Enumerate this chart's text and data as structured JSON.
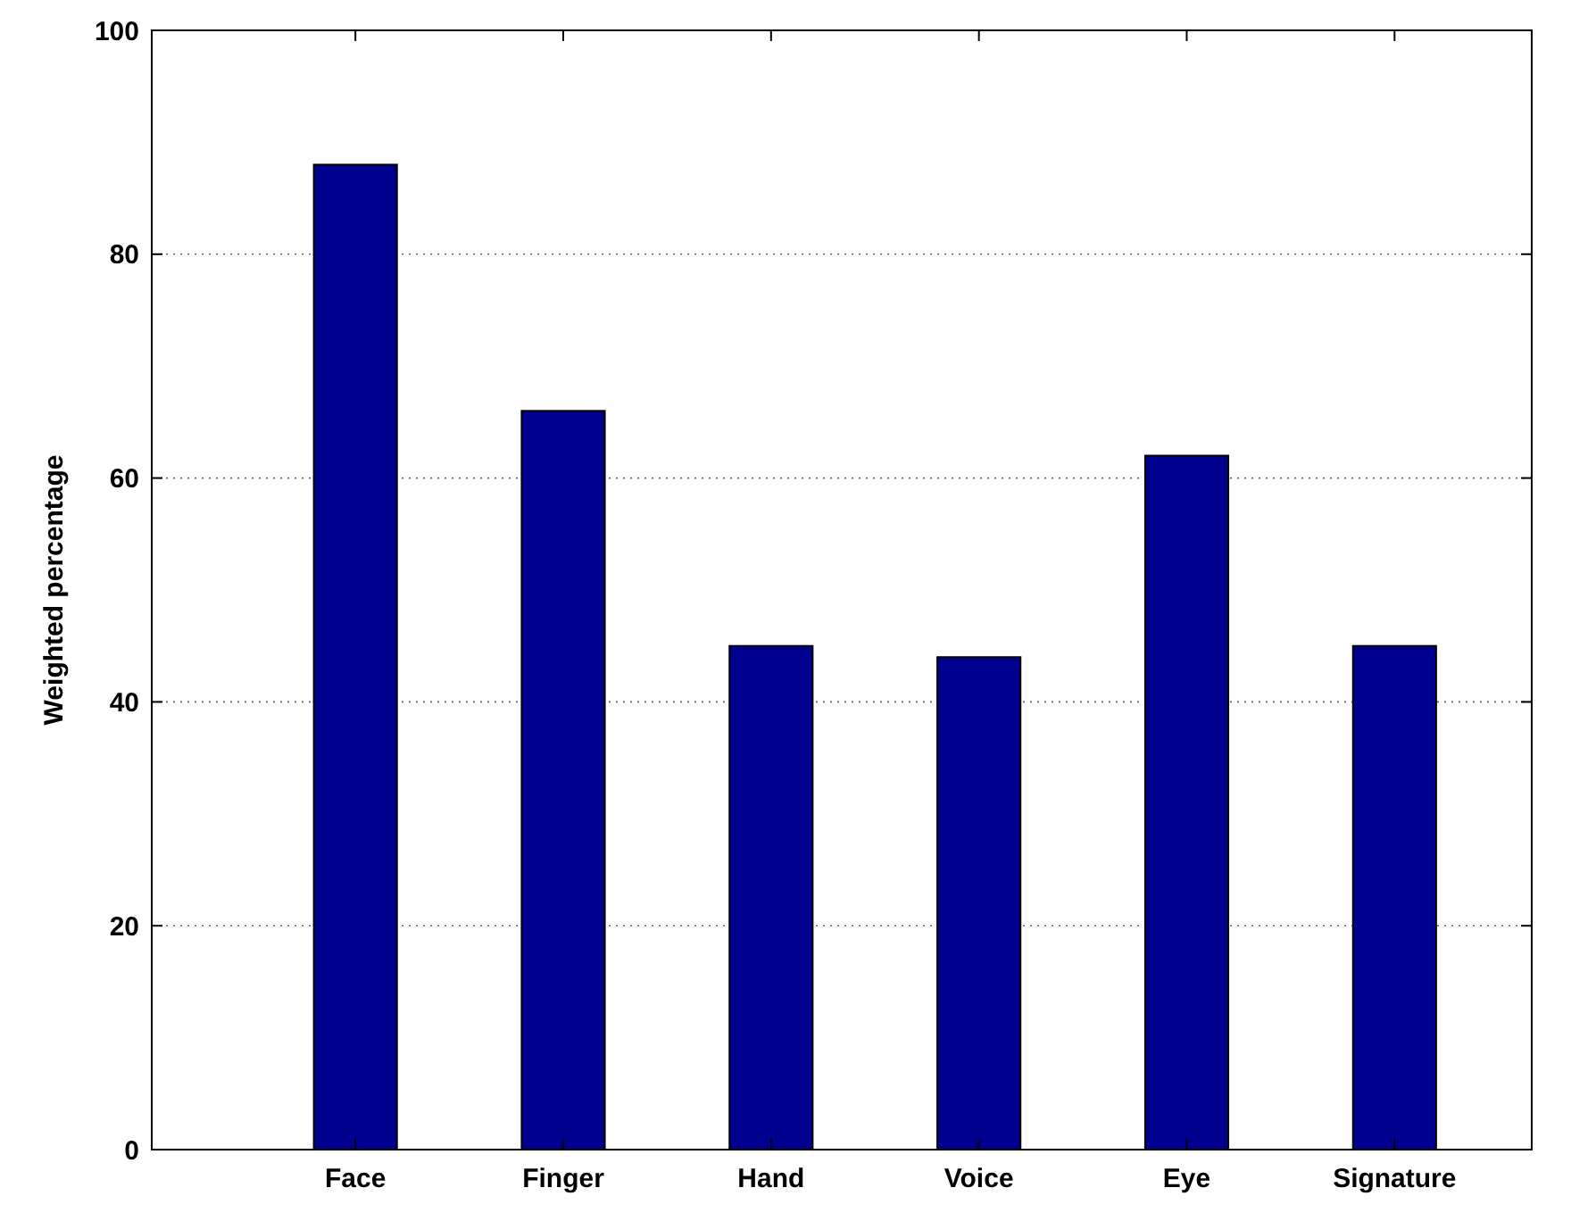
{
  "chart_data": {
    "type": "bar",
    "ylabel": "Weighted percentage",
    "categories": [
      "Face",
      "Finger",
      "Hand",
      "Voice",
      "Eye",
      "Signature"
    ],
    "values": [
      88,
      66,
      45,
      44,
      62,
      45
    ],
    "color": "#00008f",
    "ylim": [
      0,
      100
    ],
    "yticks": [
      0,
      20,
      40,
      60,
      80,
      100
    ],
    "grid": "y"
  }
}
